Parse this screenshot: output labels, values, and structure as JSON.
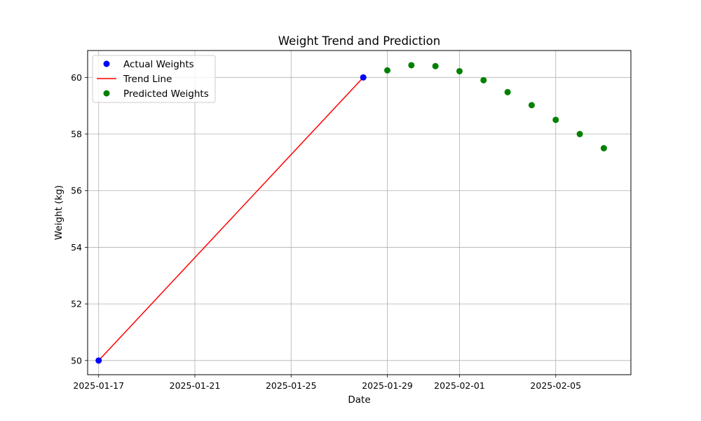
{
  "chart_data": {
    "type": "scatter",
    "title": "Weight Trend and Prediction",
    "xlabel": "Date",
    "ylabel": "Weight (kg)",
    "x_ticks": [
      "2025-01-17",
      "2025-01-21",
      "2025-01-25",
      "2025-01-29",
      "2025-02-01",
      "2025-02-05"
    ],
    "y_ticks": [
      50,
      52,
      54,
      56,
      58,
      60
    ],
    "xlim": [
      "2025-01-16T13:00",
      "2025-02-08T03:00"
    ],
    "ylim": [
      49.5,
      60.95
    ],
    "grid": true,
    "legend_position": "top-left",
    "series": [
      {
        "name": "Actual Weights",
        "kind": "scatter",
        "color": "#0000ff",
        "points": [
          {
            "x": "2025-01-17",
            "y": 50.0
          },
          {
            "x": "2025-01-28",
            "y": 60.0
          }
        ]
      },
      {
        "name": "Trend Line",
        "kind": "line",
        "color": "#ff0000",
        "points": [
          {
            "x": "2025-01-17",
            "y": 50.0
          },
          {
            "x": "2025-01-28",
            "y": 60.0
          }
        ]
      },
      {
        "name": "Predicted Weights",
        "kind": "scatter",
        "color": "#008000",
        "points": [
          {
            "x": "2025-01-29",
            "y": 60.25
          },
          {
            "x": "2025-01-30",
            "y": 60.43
          },
          {
            "x": "2025-01-31",
            "y": 60.4
          },
          {
            "x": "2025-02-01",
            "y": 60.22
          },
          {
            "x": "2025-02-02",
            "y": 59.9
          },
          {
            "x": "2025-02-03",
            "y": 59.48
          },
          {
            "x": "2025-02-04",
            "y": 59.02
          },
          {
            "x": "2025-02-05",
            "y": 58.5
          },
          {
            "x": "2025-02-06",
            "y": 58.0
          },
          {
            "x": "2025-02-07",
            "y": 57.5
          }
        ]
      }
    ]
  }
}
